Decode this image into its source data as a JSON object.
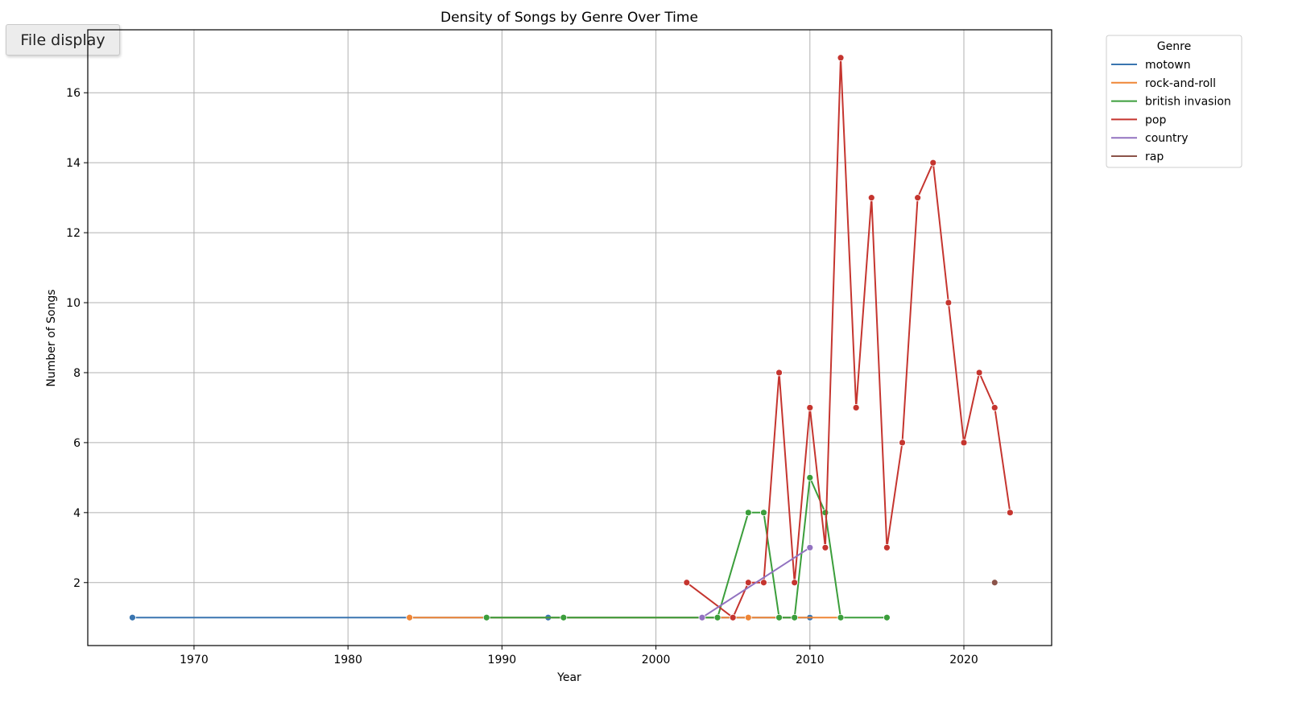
{
  "toolbar": {
    "file_display_label": "File display"
  },
  "chart_data": {
    "type": "line",
    "title": "Density of Songs by Genre Over Time",
    "xlabel": "Year",
    "ylabel": "Number of Songs",
    "xlim": [
      1963.1,
      2025.7
    ],
    "ylim": [
      0.2,
      17.8
    ],
    "xticks": [
      1970,
      1980,
      1990,
      2000,
      2010,
      2020
    ],
    "yticks": [
      2,
      4,
      6,
      8,
      10,
      12,
      14,
      16
    ],
    "grid": true,
    "legend": {
      "title": "Genre",
      "placement": "outside-top-right"
    },
    "series": [
      {
        "name": "motown",
        "color": "#3a75b0",
        "points": [
          [
            1966,
            1
          ],
          [
            1993,
            1
          ],
          [
            2010,
            1
          ]
        ]
      },
      {
        "name": "rock-and-roll",
        "color": "#ef8636",
        "points": [
          [
            1984,
            1
          ],
          [
            2006,
            1
          ],
          [
            2012,
            1
          ]
        ]
      },
      {
        "name": "british invasion",
        "color": "#3b9e3b",
        "points": [
          [
            1989,
            1
          ],
          [
            1994,
            1
          ],
          [
            2004,
            1
          ],
          [
            2006,
            4
          ],
          [
            2007,
            4
          ],
          [
            2008,
            1
          ],
          [
            2009,
            1
          ],
          [
            2010,
            5
          ],
          [
            2011,
            4
          ],
          [
            2012,
            1
          ],
          [
            2015,
            1
          ]
        ]
      },
      {
        "name": "pop",
        "color": "#c5352f",
        "points": [
          [
            2002,
            2
          ],
          [
            2005,
            1
          ],
          [
            2006,
            2
          ],
          [
            2007,
            2
          ],
          [
            2008,
            8
          ],
          [
            2009,
            2
          ],
          [
            2010,
            7
          ],
          [
            2011,
            3
          ],
          [
            2012,
            17
          ],
          [
            2013,
            7
          ],
          [
            2014,
            13
          ],
          [
            2015,
            3
          ],
          [
            2016,
            6
          ],
          [
            2017,
            13
          ],
          [
            2018,
            14
          ],
          [
            2019,
            10
          ],
          [
            2020,
            6
          ],
          [
            2021,
            8
          ],
          [
            2022,
            7
          ],
          [
            2023,
            4
          ]
        ]
      },
      {
        "name": "country",
        "color": "#9272c0",
        "points": [
          [
            2003,
            1
          ],
          [
            2010,
            3
          ]
        ]
      },
      {
        "name": "rap",
        "color": "#8b5349",
        "points": [
          [
            2022,
            2
          ]
        ]
      }
    ]
  }
}
